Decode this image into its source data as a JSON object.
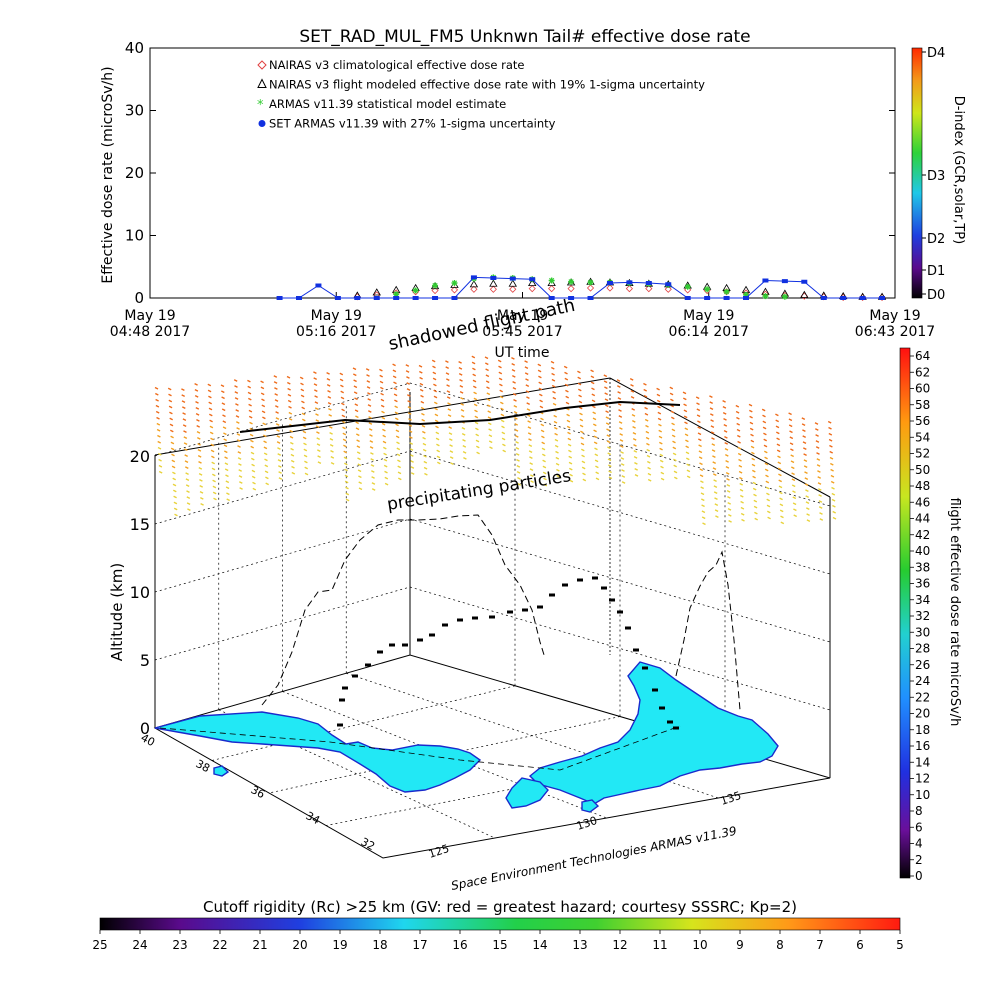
{
  "title": "SET_RAD_MUL_FM5 Unknwn Tail#  effective dose rate",
  "colors": {
    "nairas_clim": "#e04040",
    "armas_model": "#33cc33",
    "set_armas": "#1030e0",
    "land": "#22e8f5",
    "land_edge": "#1a2acc",
    "flight_path": "#000000"
  },
  "top_chart": {
    "legend": [
      "NAIRAS v3 climatological effective dose rate",
      "NAIRAS v3 flight modeled effective dose rate with 19% 1-sigma uncertainty",
      "ARMAS v11.39 statistical model estimate",
      "SET ARMAS v11.39 with 27% 1-sigma uncertainty"
    ],
    "ylabel": "Effective dose rate (microSv/h)",
    "xlabel": "UT time",
    "y_ticks": [
      "0",
      "10",
      "20",
      "30",
      "40"
    ],
    "x_ticks": [
      {
        "l1": "May 19",
        "l2": "04:48 2017"
      },
      {
        "l1": "May 19",
        "l2": "05:16 2017"
      },
      {
        "l1": "May 19",
        "l2": "05:45 2017"
      },
      {
        "l1": "May 19",
        "l2": "06:14 2017"
      },
      {
        "l1": "May 19",
        "l2": "06:43 2017"
      }
    ],
    "right_axis_label": "D-index (GCR,solar,TP)",
    "right_axis_ticks": [
      "D4",
      "D3",
      "D2",
      "D1",
      "D0"
    ]
  },
  "chart_data": [
    {
      "type": "scatter",
      "title": "SET_RAD_MUL_FM5 Unknwn Tail#  effective dose rate",
      "xlabel": "UT time",
      "ylabel": "Effective dose rate (microSv/h)",
      "xlim": [
        0,
        115
      ],
      "ylim": [
        0,
        40
      ],
      "x_unit": "minutes after May 19 04:48 2017",
      "legend_position": "top-left",
      "grid": false,
      "series": [
        {
          "name": "NAIRAS v3 climatological effective dose rate",
          "x": [
            32,
            35,
            38,
            41,
            44,
            47,
            50,
            53,
            56,
            59,
            62,
            65,
            68,
            71,
            74,
            77,
            80,
            83,
            86,
            89,
            92,
            95,
            98,
            101,
            104,
            107,
            110,
            113
          ],
          "y": [
            0.2,
            0.5,
            0.8,
            1.0,
            1.2,
            1.3,
            1.4,
            1.4,
            1.4,
            1.5,
            1.5,
            1.5,
            1.6,
            1.6,
            1.5,
            1.5,
            1.4,
            1.3,
            1.2,
            1.0,
            0.8,
            0.6,
            0.4,
            0.3,
            0.2,
            0.1,
            0.1,
            0.1
          ]
        },
        {
          "name": "NAIRAS v3 flight modeled effective dose rate with 19% 1-sigma uncertainty",
          "x": [
            32,
            35,
            38,
            41,
            44,
            47,
            50,
            53,
            56,
            59,
            62,
            65,
            68,
            71,
            74,
            77,
            80,
            83,
            86,
            89,
            92,
            95,
            98,
            101,
            104,
            107,
            110,
            113
          ],
          "y": [
            0.3,
            0.8,
            1.2,
            1.5,
            1.8,
            2.0,
            2.1,
            2.2,
            2.2,
            2.3,
            2.3,
            2.4,
            2.5,
            2.4,
            2.3,
            2.2,
            2.1,
            1.9,
            1.7,
            1.5,
            1.2,
            0.9,
            0.6,
            0.4,
            0.3,
            0.2,
            0.1,
            0.1
          ]
        },
        {
          "name": "ARMAS v11.39 statistical model estimate",
          "x": [
            38,
            41,
            44,
            47,
            50,
            53,
            56,
            59,
            62,
            65,
            68,
            71,
            74,
            77,
            80,
            83,
            86,
            89,
            92,
            95,
            98
          ],
          "y": [
            0.6,
            1.2,
            2.0,
            2.4,
            3.1,
            3.3,
            3.2,
            3.0,
            2.8,
            2.6,
            2.5,
            2.5,
            2.4,
            2.3,
            2.1,
            1.8,
            1.4,
            1.0,
            0.5,
            0.3,
            0.2
          ]
        },
        {
          "name": "SET ARMAS v11.39 with 27% 1-sigma uncertainty",
          "x": [
            20,
            23,
            26,
            29,
            32,
            35,
            38,
            41,
            44,
            47,
            50,
            53,
            56,
            59,
            62,
            65,
            68,
            71,
            74,
            77,
            80,
            83,
            86,
            89,
            92,
            95,
            98,
            101,
            104,
            107,
            110,
            113
          ],
          "y": [
            0,
            0,
            2.0,
            0,
            0,
            0,
            0,
            0,
            0,
            0,
            3.3,
            3.2,
            3.1,
            3.0,
            0,
            0,
            0,
            2.4,
            2.5,
            2.4,
            2.2,
            0,
            0,
            0,
            0,
            2.8,
            2.7,
            2.6,
            0,
            0,
            0,
            0
          ]
        }
      ]
    },
    {
      "type": "scatter",
      "title": "",
      "zlabel": "Altitude (km)",
      "z_ticks": [
        "0",
        "5",
        "10",
        "15",
        "20"
      ],
      "lat_ticks": [
        "40",
        "38",
        "36",
        "34",
        "32"
      ],
      "lon_ticks": [
        "125",
        "130",
        "135"
      ],
      "annotations": [
        "shadowed flight path",
        "precipitating particles"
      ],
      "credit": "Space Environment Technologies ARMAS v11.39",
      "colorbar": {
        "label": "flight effective dose rate microSv/h",
        "ticks": [
          "64",
          "62",
          "60",
          "58",
          "56",
          "54",
          "52",
          "50",
          "48",
          "46",
          "44",
          "42",
          "40",
          "38",
          "36",
          "34",
          "32",
          "30",
          "28",
          "26",
          "24",
          "22",
          "20",
          "18",
          "16",
          "14",
          "12",
          "10",
          "8",
          "6",
          "4",
          "2",
          "0"
        ]
      },
      "cutoff_bar": {
        "label": "Cutoff rigidity (Rc) >25 km (GV: red = greatest hazard; courtesy SSSRC; Kp=2)",
        "ticks": [
          "25",
          "24",
          "23",
          "22",
          "21",
          "20",
          "19",
          "18",
          "17",
          "16",
          "15",
          "14",
          "13",
          "12",
          "11",
          "10",
          "9",
          "8",
          "7",
          "6",
          "5"
        ]
      }
    }
  ]
}
